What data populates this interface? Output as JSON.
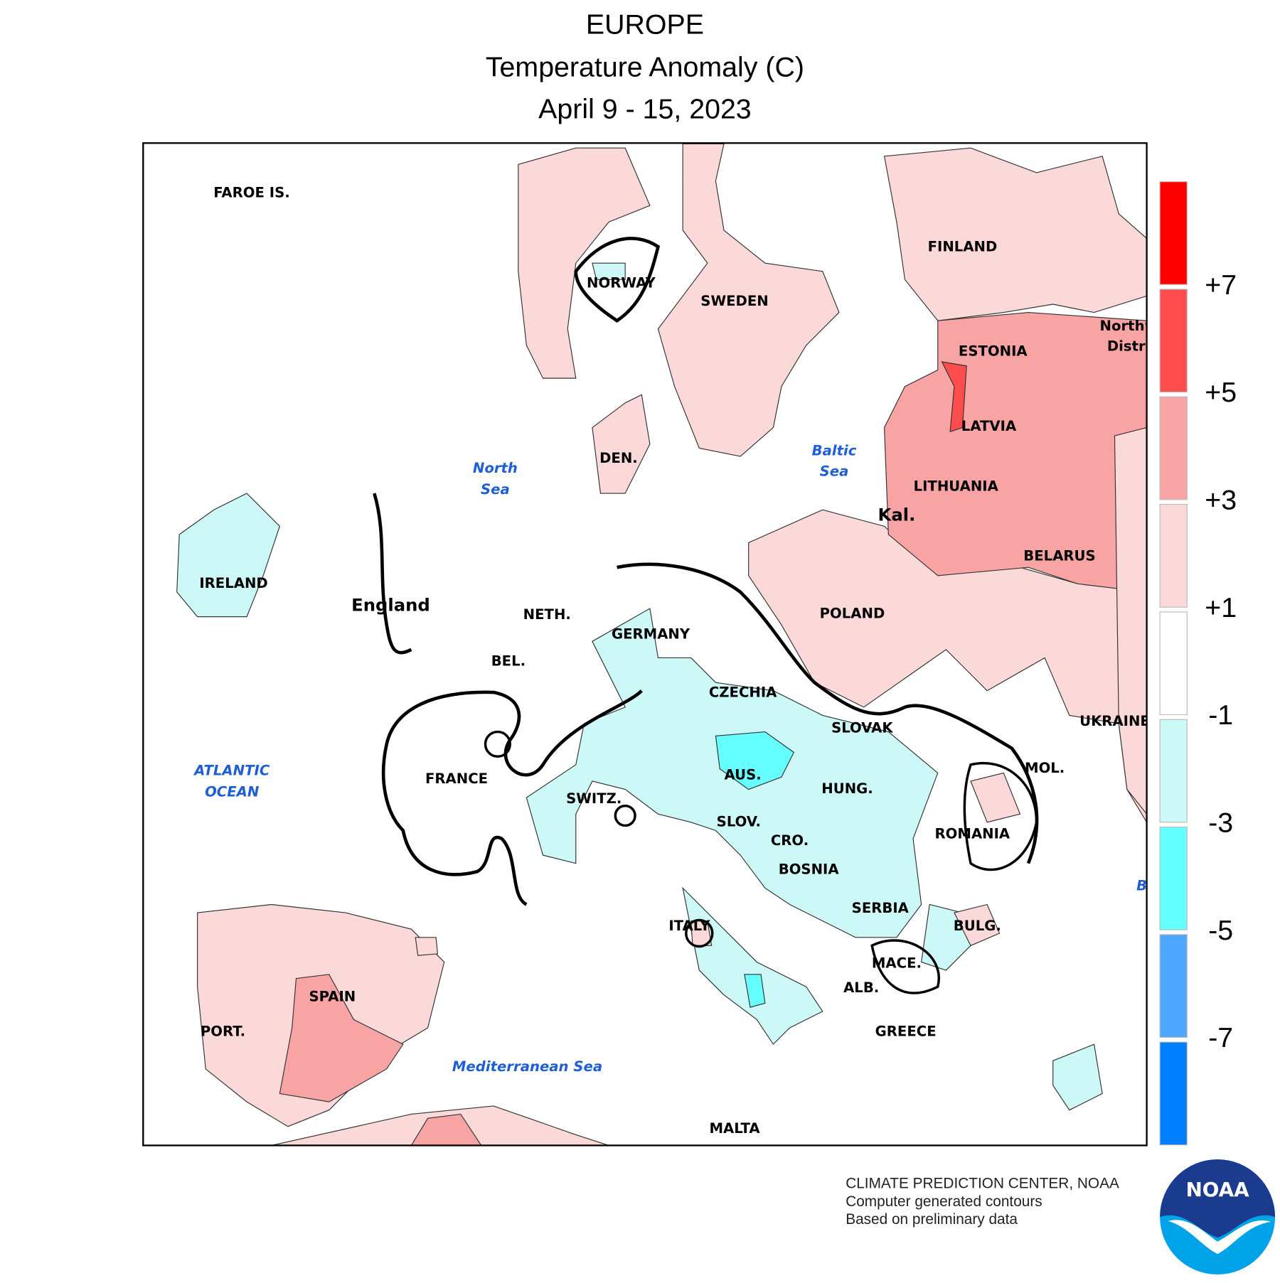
{
  "header": {
    "title": [
      "EUROPE",
      "Temperature Anomaly (C)",
      "April 9 - 15, 2023"
    ]
  },
  "map": {
    "labels": [
      "FAROE IS.",
      "NORWAY",
      "SWEDEN",
      "FINLAND",
      "ESTONIA",
      "Northw",
      "Distri",
      "LATVIA",
      "LITHUANIA",
      "Kal.",
      "BELARUS",
      "POLAND",
      "DEN.",
      "IRELAND",
      "England",
      "NETH.",
      "GERMANY",
      "BEL.",
      "CZECHIA",
      "SLOVAK",
      "UKRAINE",
      "MOL.",
      "FRANCE",
      "AUS.",
      "SWITZ.",
      "HUNG.",
      "SLOV.",
      "CRO.",
      "ROMANIA",
      "BOSNIA",
      "SERBIA",
      "ITALY",
      "BULG.",
      "MACE.",
      "ALB.",
      "SPAIN",
      "PORT.",
      "GREECE",
      "MALTA"
    ],
    "water_labels": [
      "North",
      "Sea",
      "Baltic",
      "Sea",
      "ATLANTIC",
      "OCEAN",
      "Mediterranean Sea",
      "B"
    ]
  },
  "legend": {
    "colors": [
      "#ff0000",
      "#ff4c4c",
      "#f9a4a4",
      "#fcd9d9",
      "#ffffff",
      "#ccf8f8",
      "#66ffff",
      "#4fa6ff",
      "#0080ff"
    ],
    "labels": [
      "+7",
      "+5",
      "+3",
      "+1",
      "-1",
      "-3",
      "-5",
      "-7"
    ]
  },
  "footer": {
    "lines": [
      "CLIMATE PREDICTION CENTER, NOAA",
      "Computer generated contours",
      "Based on preliminary data"
    ]
  },
  "logo": {
    "text": "NOAA"
  }
}
